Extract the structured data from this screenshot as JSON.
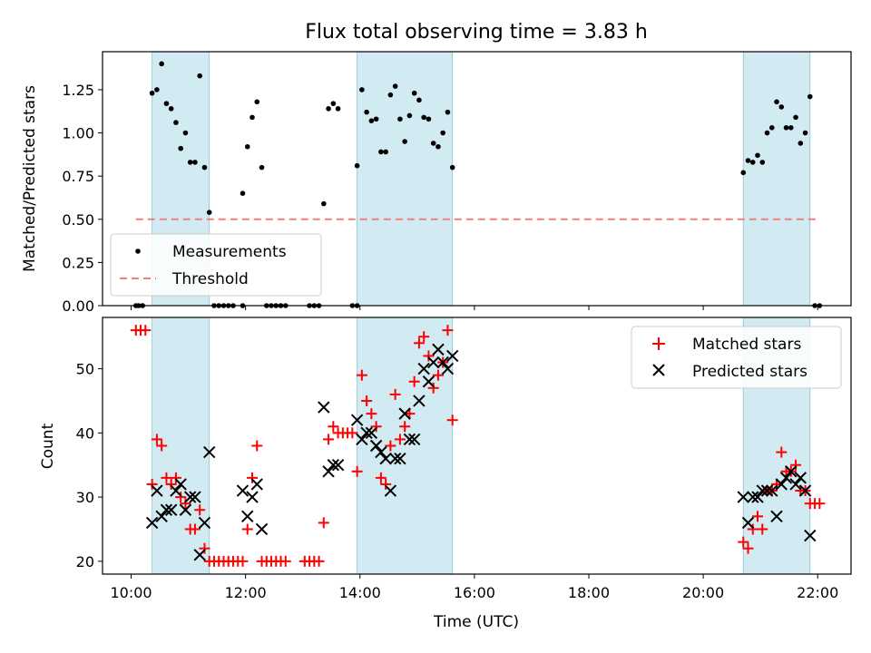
{
  "chart_data": [
    {
      "type": "scatter",
      "title": "Flux total observing time = 3.83 h",
      "xlabel": "",
      "ylabel": "Matched/Predicted stars",
      "xlim": [
        "09:30",
        "22:35"
      ],
      "ylim": [
        0,
        1.47
      ],
      "grid": false,
      "legend": "lower-left",
      "x_ticks": [
        "10:00",
        "12:00",
        "14:00",
        "16:00",
        "18:00",
        "20:00",
        "22:00"
      ],
      "y_ticks": [
        "0.00",
        "0.25",
        "0.50",
        "0.75",
        "1.00",
        "1.25"
      ],
      "shaded_intervals": [
        [
          "10:22",
          "11:22"
        ],
        [
          "13:57",
          "15:37"
        ],
        [
          "20:42",
          "21:52"
        ]
      ],
      "threshold": {
        "value": 0.5,
        "from": "10:05",
        "to": "22:00"
      },
      "series": [
        {
          "name": "Measurements",
          "marker": "dot",
          "color": "#000000",
          "points": [
            [
              "10:05",
              0.0
            ],
            [
              "10:08",
              0.0
            ],
            [
              "10:12",
              0.0
            ],
            [
              "10:22",
              1.23
            ],
            [
              "10:27",
              1.25
            ],
            [
              "10:32",
              1.4
            ],
            [
              "10:37",
              1.17
            ],
            [
              "10:42",
              1.14
            ],
            [
              "10:47",
              1.06
            ],
            [
              "10:52",
              0.91
            ],
            [
              "10:57",
              1.0
            ],
            [
              "11:02",
              0.83
            ],
            [
              "11:07",
              0.83
            ],
            [
              "11:12",
              1.33
            ],
            [
              "11:17",
              0.8
            ],
            [
              "11:22",
              0.54
            ],
            [
              "11:27",
              0.0
            ],
            [
              "11:32",
              0.0
            ],
            [
              "11:37",
              0.0
            ],
            [
              "11:42",
              0.0
            ],
            [
              "11:47",
              0.0
            ],
            [
              "11:57",
              0.0
            ],
            [
              "11:57",
              0.65
            ],
            [
              "12:02",
              0.92
            ],
            [
              "12:07",
              1.09
            ],
            [
              "12:12",
              1.18
            ],
            [
              "12:17",
              0.8
            ],
            [
              "12:22",
              0.0
            ],
            [
              "12:27",
              0.0
            ],
            [
              "12:32",
              0.0
            ],
            [
              "12:37",
              0.0
            ],
            [
              "12:42",
              0.0
            ],
            [
              "13:07",
              0.0
            ],
            [
              "13:12",
              0.0
            ],
            [
              "13:17",
              0.0
            ],
            [
              "13:22",
              0.59
            ],
            [
              "13:27",
              1.14
            ],
            [
              "13:32",
              1.17
            ],
            [
              "13:37",
              1.14
            ],
            [
              "13:52",
              0.0
            ],
            [
              "13:57",
              0.0
            ],
            [
              "13:57",
              0.81
            ],
            [
              "14:02",
              1.25
            ],
            [
              "14:07",
              1.12
            ],
            [
              "14:12",
              1.07
            ],
            [
              "14:17",
              1.08
            ],
            [
              "14:22",
              0.89
            ],
            [
              "14:27",
              0.89
            ],
            [
              "14:32",
              1.22
            ],
            [
              "14:37",
              1.27
            ],
            [
              "14:42",
              1.08
            ],
            [
              "14:47",
              0.95
            ],
            [
              "14:52",
              1.1
            ],
            [
              "14:57",
              1.23
            ],
            [
              "15:02",
              1.19
            ],
            [
              "15:07",
              1.09
            ],
            [
              "15:12",
              1.08
            ],
            [
              "15:17",
              0.94
            ],
            [
              "15:22",
              0.92
            ],
            [
              "15:27",
              1.0
            ],
            [
              "15:32",
              1.12
            ],
            [
              "15:37",
              0.8
            ],
            [
              "20:42",
              0.77
            ],
            [
              "20:47",
              0.84
            ],
            [
              "20:52",
              0.83
            ],
            [
              "20:57",
              0.87
            ],
            [
              "21:02",
              0.83
            ],
            [
              "21:07",
              1.0
            ],
            [
              "21:12",
              1.03
            ],
            [
              "21:17",
              1.18
            ],
            [
              "21:22",
              1.15
            ],
            [
              "21:27",
              1.03
            ],
            [
              "21:32",
              1.03
            ],
            [
              "21:37",
              1.09
            ],
            [
              "21:42",
              0.94
            ],
            [
              "21:47",
              1.0
            ],
            [
              "21:52",
              1.21
            ],
            [
              "21:57",
              0.0
            ],
            [
              "22:02",
              0.0
            ]
          ]
        },
        {
          "name": "Threshold",
          "marker": "dashed-line",
          "color": "#f08080"
        }
      ]
    },
    {
      "type": "scatter",
      "title": "",
      "xlabel": "Time (UTC)",
      "ylabel": "Count",
      "xlim": [
        "09:30",
        "22:35"
      ],
      "ylim": [
        18,
        58
      ],
      "grid": false,
      "legend": "top-right",
      "x_ticks": [
        "10:00",
        "12:00",
        "14:00",
        "16:00",
        "18:00",
        "20:00",
        "22:00"
      ],
      "y_ticks": [
        "20",
        "30",
        "40",
        "50"
      ],
      "shaded_intervals": [
        [
          "10:22",
          "11:22"
        ],
        [
          "13:57",
          "15:37"
        ],
        [
          "20:42",
          "21:52"
        ]
      ],
      "series": [
        {
          "name": "Matched stars",
          "marker": "plus",
          "color": "#ff0000",
          "points": [
            [
              "10:05",
              56
            ],
            [
              "10:10",
              56
            ],
            [
              "10:15",
              56
            ],
            [
              "10:22",
              32
            ],
            [
              "10:27",
              39
            ],
            [
              "10:32",
              38
            ],
            [
              "10:37",
              33
            ],
            [
              "10:42",
              32
            ],
            [
              "10:47",
              33
            ],
            [
              "10:52",
              30
            ],
            [
              "10:57",
              29
            ],
            [
              "11:02",
              25
            ],
            [
              "11:07",
              25
            ],
            [
              "11:12",
              28
            ],
            [
              "11:17",
              22
            ],
            [
              "11:22",
              20
            ],
            [
              "11:27",
              20
            ],
            [
              "11:32",
              20
            ],
            [
              "11:37",
              20
            ],
            [
              "11:42",
              20
            ],
            [
              "11:47",
              20
            ],
            [
              "11:52",
              20
            ],
            [
              "11:57",
              20
            ],
            [
              "12:02",
              25
            ],
            [
              "12:07",
              33
            ],
            [
              "12:12",
              38
            ],
            [
              "12:17",
              20
            ],
            [
              "12:22",
              20
            ],
            [
              "12:27",
              20
            ],
            [
              "12:32",
              20
            ],
            [
              "12:37",
              20
            ],
            [
              "12:42",
              20
            ],
            [
              "13:02",
              20
            ],
            [
              "13:07",
              20
            ],
            [
              "13:12",
              20
            ],
            [
              "13:17",
              20
            ],
            [
              "13:22",
              26
            ],
            [
              "13:27",
              39
            ],
            [
              "13:32",
              41
            ],
            [
              "13:37",
              40
            ],
            [
              "13:42",
              40
            ],
            [
              "13:47",
              40
            ],
            [
              "13:52",
              40
            ],
            [
              "13:57",
              34
            ],
            [
              "14:02",
              49
            ],
            [
              "14:07",
              45
            ],
            [
              "14:12",
              43
            ],
            [
              "14:17",
              41
            ],
            [
              "14:22",
              33
            ],
            [
              "14:27",
              32
            ],
            [
              "14:32",
              38
            ],
            [
              "14:37",
              46
            ],
            [
              "14:42",
              39
            ],
            [
              "14:47",
              41
            ],
            [
              "14:52",
              43
            ],
            [
              "14:57",
              48
            ],
            [
              "15:02",
              54
            ],
            [
              "15:07",
              55
            ],
            [
              "15:12",
              52
            ],
            [
              "15:17",
              47
            ],
            [
              "15:22",
              49
            ],
            [
              "15:27",
              51
            ],
            [
              "15:32",
              56
            ],
            [
              "15:37",
              42
            ],
            [
              "20:42",
              23
            ],
            [
              "20:47",
              22
            ],
            [
              "20:52",
              25
            ],
            [
              "20:57",
              27
            ],
            [
              "21:02",
              25
            ],
            [
              "21:07",
              31
            ],
            [
              "21:12",
              31
            ],
            [
              "21:17",
              32
            ],
            [
              "21:22",
              37
            ],
            [
              "21:27",
              34
            ],
            [
              "21:32",
              34
            ],
            [
              "21:37",
              35
            ],
            [
              "21:42",
              31
            ],
            [
              "21:47",
              31
            ],
            [
              "21:52",
              29
            ],
            [
              "21:57",
              29
            ],
            [
              "22:02",
              29
            ]
          ]
        },
        {
          "name": "Predicted stars",
          "marker": "x",
          "color": "#000000",
          "points": [
            [
              "10:22",
              26
            ],
            [
              "10:27",
              31
            ],
            [
              "10:32",
              27
            ],
            [
              "10:37",
              28
            ],
            [
              "10:42",
              28
            ],
            [
              "10:47",
              31
            ],
            [
              "10:52",
              32
            ],
            [
              "10:57",
              28
            ],
            [
              "11:02",
              30
            ],
            [
              "11:07",
              30
            ],
            [
              "11:12",
              21
            ],
            [
              "11:17",
              26
            ],
            [
              "11:22",
              37
            ],
            [
              "11:57",
              31
            ],
            [
              "12:02",
              27
            ],
            [
              "12:07",
              30
            ],
            [
              "12:12",
              32
            ],
            [
              "12:17",
              25
            ],
            [
              "13:22",
              44
            ],
            [
              "13:27",
              34
            ],
            [
              "13:32",
              35
            ],
            [
              "13:37",
              35
            ],
            [
              "13:57",
              42
            ],
            [
              "14:02",
              39
            ],
            [
              "14:07",
              40
            ],
            [
              "14:12",
              40
            ],
            [
              "14:17",
              38
            ],
            [
              "14:22",
              37
            ],
            [
              "14:27",
              36
            ],
            [
              "14:32",
              31
            ],
            [
              "14:37",
              36
            ],
            [
              "14:42",
              36
            ],
            [
              "14:47",
              43
            ],
            [
              "14:52",
              39
            ],
            [
              "14:57",
              39
            ],
            [
              "15:02",
              45
            ],
            [
              "15:07",
              50
            ],
            [
              "15:12",
              48
            ],
            [
              "15:17",
              51
            ],
            [
              "15:22",
              53
            ],
            [
              "15:27",
              51
            ],
            [
              "15:32",
              50
            ],
            [
              "15:37",
              52
            ],
            [
              "20:42",
              30
            ],
            [
              "20:47",
              26
            ],
            [
              "20:52",
              30
            ],
            [
              "20:57",
              30
            ],
            [
              "21:02",
              31
            ],
            [
              "21:07",
              31
            ],
            [
              "21:12",
              31
            ],
            [
              "21:17",
              27
            ],
            [
              "21:22",
              32
            ],
            [
              "21:27",
              33
            ],
            [
              "21:32",
              34
            ],
            [
              "21:37",
              32
            ],
            [
              "21:42",
              33
            ],
            [
              "21:47",
              31
            ],
            [
              "21:52",
              24
            ]
          ]
        }
      ]
    }
  ]
}
